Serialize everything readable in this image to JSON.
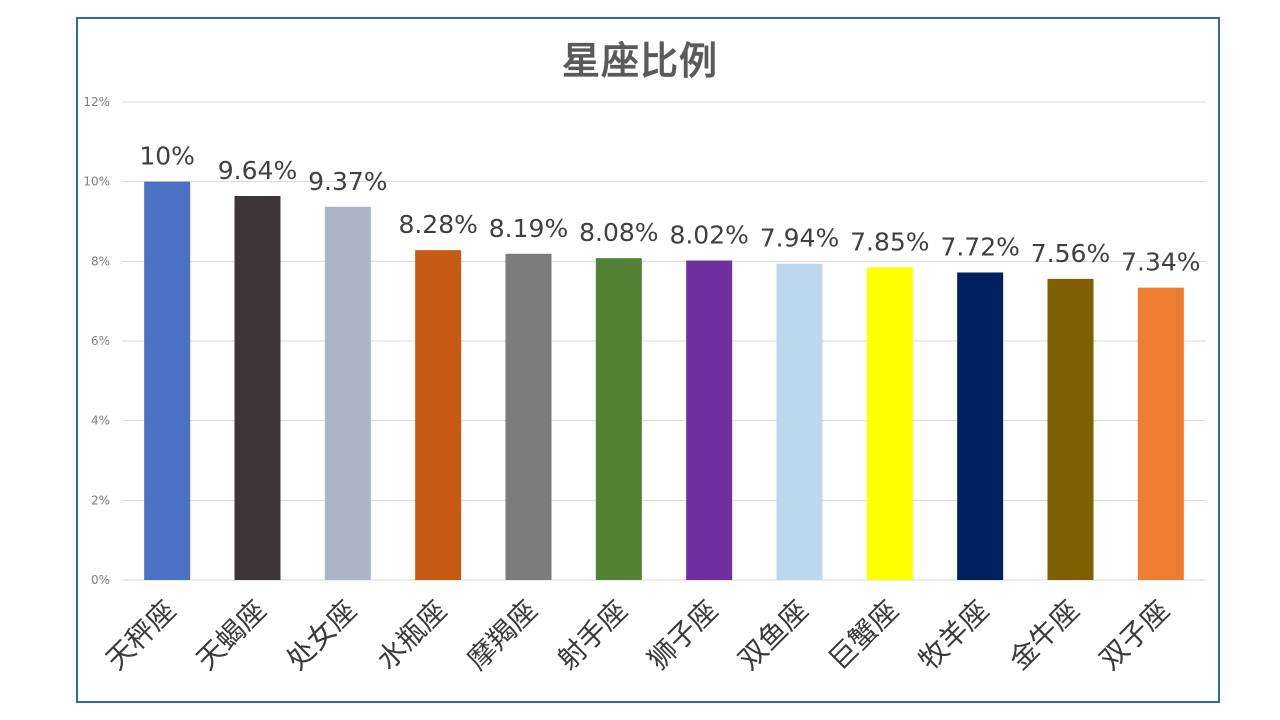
{
  "chart_data": {
    "type": "bar",
    "title": "星座比例",
    "categories": [
      "天秤座",
      "天蝎座",
      "处女座",
      "水瓶座",
      "摩羯座",
      "射手座",
      "狮子座",
      "双鱼座",
      "巨蟹座",
      "牧羊座",
      "金牛座",
      "双子座"
    ],
    "values": [
      10,
      9.64,
      9.37,
      8.28,
      8.19,
      8.08,
      8.02,
      7.94,
      7.85,
      7.72,
      7.56,
      7.34
    ],
    "data_labels": [
      "10%",
      "9.64%",
      "9.37%",
      "8.28%",
      "8.19%",
      "8.08%",
      "8.02%",
      "7.94%",
      "7.85%",
      "7.72%",
      "7.56%",
      "7.34%"
    ],
    "colors": [
      "#4a72c4",
      "#3b3738",
      "#aeb4c8",
      "#c55a11",
      "#7b7b7b",
      "#548235",
      "#7030a0",
      "#bdd7ee",
      "#ffff00",
      "#002060",
      "#7f6000",
      "#ed7d31"
    ],
    "y_ticks": [
      "0%",
      "2%",
      "4%",
      "6%",
      "8%",
      "10%",
      "12%"
    ],
    "ylim": [
      0,
      12
    ],
    "grid": true,
    "xlabel": "",
    "ylabel": ""
  }
}
